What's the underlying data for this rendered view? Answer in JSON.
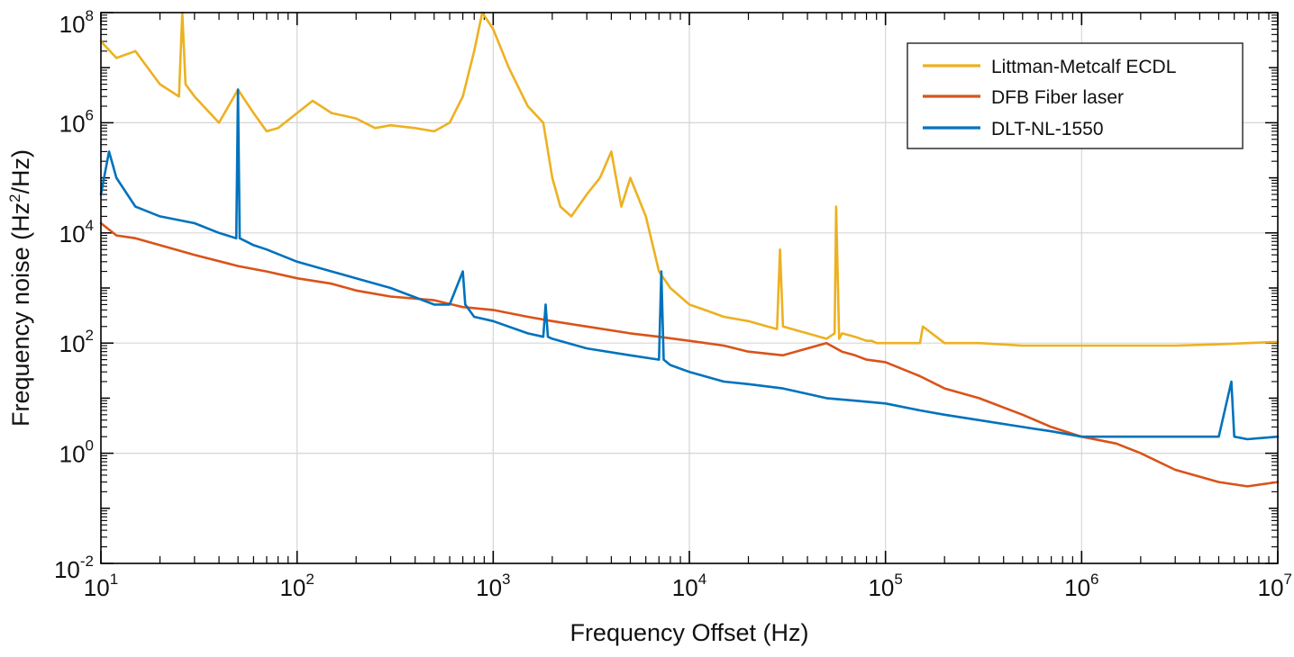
{
  "chart_data": {
    "type": "line",
    "xlabel": "Frequency Offset (Hz)",
    "ylabel_parts": [
      "Frequency noise (Hz",
      "2",
      "/Hz)"
    ],
    "x_scale": "log",
    "y_scale": "log",
    "xlim": [
      10,
      10000000
    ],
    "ylim": [
      0.01,
      100000000
    ],
    "x_ticks": [
      {
        "base": "10",
        "exp": "1",
        "value": 10
      },
      {
        "base": "10",
        "exp": "2",
        "value": 100
      },
      {
        "base": "10",
        "exp": "3",
        "value": 1000
      },
      {
        "base": "10",
        "exp": "4",
        "value": 10000
      },
      {
        "base": "10",
        "exp": "5",
        "value": 100000
      },
      {
        "base": "10",
        "exp": "6",
        "value": 1000000
      },
      {
        "base": "10",
        "exp": "7",
        "value": 10000000
      }
    ],
    "y_ticks": [
      {
        "base": "10",
        "exp": "-2",
        "value": 0.01
      },
      {
        "base": "10",
        "exp": "0",
        "value": 1
      },
      {
        "base": "10",
        "exp": "2",
        "value": 100
      },
      {
        "base": "10",
        "exp": "4",
        "value": 10000
      },
      {
        "base": "10",
        "exp": "6",
        "value": 1000000
      },
      {
        "base": "10",
        "exp": "8",
        "value": 100000000
      }
    ],
    "grid": true,
    "legend_position": "top-right",
    "series": [
      {
        "name": "Littman-Metcalf ECDL",
        "color": "#EDB120",
        "x": [
          10,
          12,
          15,
          20,
          25,
          26,
          27,
          30,
          40,
          50,
          60,
          70,
          80,
          100,
          120,
          150,
          200,
          250,
          300,
          400,
          500,
          600,
          700,
          800,
          880,
          1000,
          1200,
          1500,
          1800,
          2000,
          2200,
          2500,
          3000,
          3500,
          4000,
          4500,
          5000,
          6000,
          7000,
          8000,
          10000,
          12000,
          15000,
          20000,
          25000,
          28000,
          29000,
          30000,
          40000,
          50000,
          55000,
          56000,
          58000,
          60000,
          70000,
          80000,
          85000,
          90000,
          100000,
          150000,
          155000,
          200000,
          300000,
          500000,
          1000000,
          2000000,
          3000000,
          5000000,
          7000000,
          10000000
        ],
        "y": [
          30000000,
          15000000,
          20000000,
          5000000,
          3000000,
          100000000,
          5000000,
          3000000,
          1000000,
          4000000,
          1500000,
          700000,
          800000,
          1500000,
          2500000,
          1500000,
          1200000,
          800000,
          900000,
          800000,
          700000,
          1000000,
          3000000,
          20000000,
          100000000,
          50000000,
          10000000,
          2000000,
          1000000,
          100000,
          30000,
          20000,
          50000,
          100000,
          300000,
          30000,
          100000,
          20000,
          2000,
          1000,
          500,
          400,
          300,
          250,
          200,
          180,
          5000,
          200,
          150,
          120,
          150,
          30000,
          120,
          150,
          130,
          110,
          110,
          100,
          100,
          100,
          200,
          100,
          100,
          90,
          90,
          90,
          90,
          95,
          100,
          105
        ]
      },
      {
        "name": "DFB Fiber laser",
        "color": "#D95319",
        "x": [
          10,
          12,
          15,
          20,
          30,
          50,
          70,
          100,
          150,
          200,
          300,
          500,
          700,
          1000,
          1500,
          2000,
          3000,
          5000,
          7000,
          10000,
          15000,
          20000,
          30000,
          40000,
          50000,
          60000,
          70000,
          80000,
          100000,
          150000,
          200000,
          300000,
          500000,
          700000,
          1000000,
          1500000,
          2000000,
          3000000,
          5000000,
          7000000,
          10000000
        ],
        "y": [
          15000,
          9000,
          8000,
          6000,
          4000,
          2500,
          2000,
          1500,
          1200,
          900,
          700,
          600,
          450,
          400,
          300,
          250,
          200,
          150,
          130,
          110,
          90,
          70,
          60,
          80,
          100,
          70,
          60,
          50,
          45,
          25,
          15,
          10,
          5,
          3,
          2,
          1.5,
          1,
          0.5,
          0.3,
          0.25,
          0.3
        ]
      },
      {
        "name": "DLT-NL-1550",
        "color": "#0072BD",
        "x": [
          10,
          11,
          12,
          15,
          20,
          30,
          40,
          49,
          50,
          51,
          60,
          70,
          100,
          150,
          200,
          300,
          500,
          600,
          700,
          720,
          800,
          1000,
          1500,
          1800,
          1850,
          1900,
          2000,
          3000,
          5000,
          7000,
          7200,
          7400,
          8000,
          10000,
          15000,
          20000,
          30000,
          50000,
          70000,
          100000,
          150000,
          200000,
          300000,
          500000,
          700000,
          1000000,
          2000000,
          3000000,
          5000000,
          5800000,
          6000000,
          7000000,
          10000000
        ],
        "y": [
          50000,
          300000,
          100000,
          30000,
          20000,
          15000,
          10000,
          8000,
          4000000,
          8000,
          6000,
          5000,
          3000,
          2000,
          1500,
          1000,
          500,
          500,
          2000,
          500,
          300,
          250,
          150,
          130,
          500,
          130,
          120,
          80,
          60,
          50,
          2000,
          50,
          40,
          30,
          20,
          18,
          15,
          10,
          9,
          8,
          6,
          5,
          4,
          3,
          2.5,
          2,
          2,
          2,
          2,
          20,
          2,
          1.8,
          2
        ]
      }
    ]
  }
}
